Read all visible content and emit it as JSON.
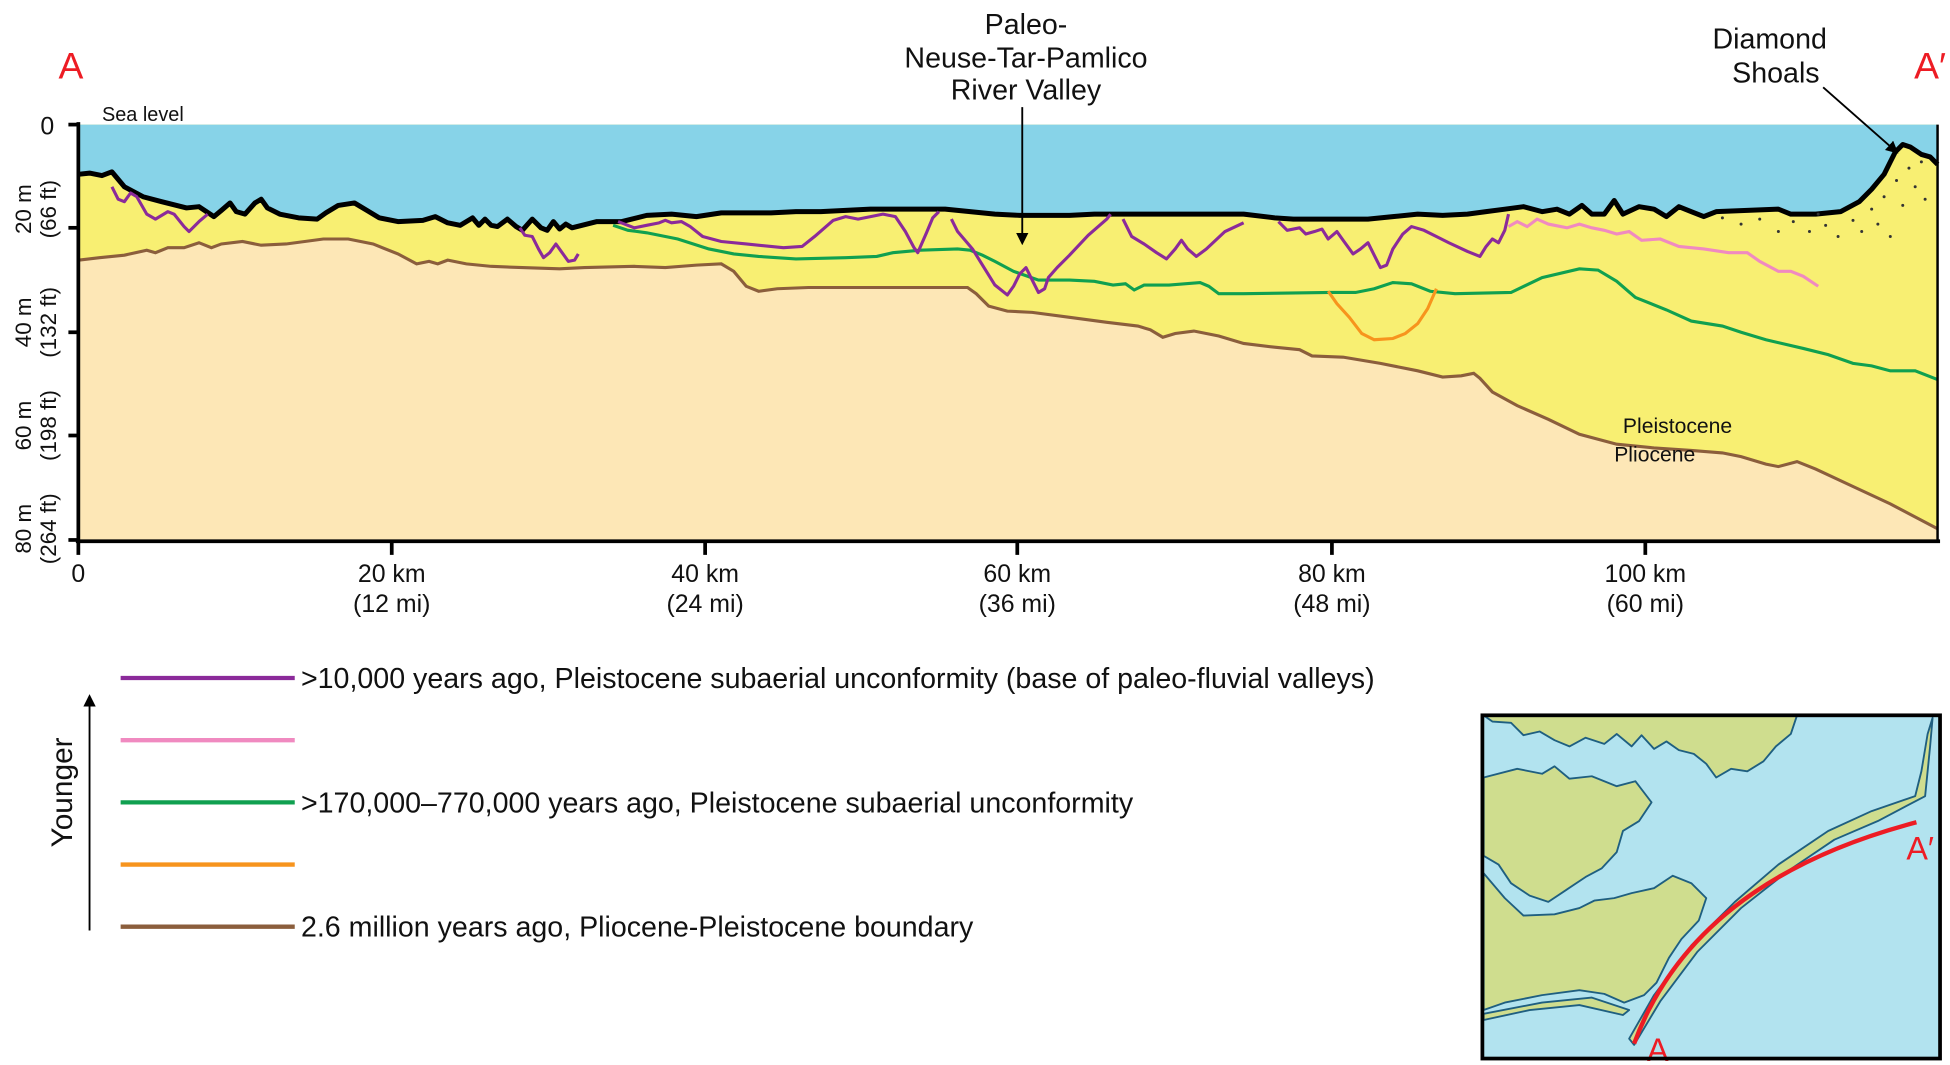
{
  "section": {
    "start_label": "A",
    "end_label": "A′",
    "sea_level_label": "Sea level",
    "valley_label": [
      "Paleo-",
      "Neuse-Tar-Pamlico",
      "River Valley"
    ],
    "shoals_label": [
      "Diamond",
      "Shoals"
    ],
    "upper_unit_label": "Pleistocene",
    "lower_unit_label": "Pliocene"
  },
  "y_axis": {
    "ticks": [
      {
        "m": "0"
      },
      {
        "m": "20 m",
        "ft": "(66 ft)"
      },
      {
        "m": "40 m",
        "ft": "(132 ft)"
      },
      {
        "m": "60 m",
        "ft": "(198 ft)"
      },
      {
        "m": "80 m",
        "ft": "(264 ft)"
      }
    ]
  },
  "x_axis": {
    "ticks": [
      {
        "km": "0"
      },
      {
        "km": "20 km",
        "mi": "(12 mi)"
      },
      {
        "km": "40 km",
        "mi": "(24 mi)"
      },
      {
        "km": "60 km",
        "mi": "(36 mi)"
      },
      {
        "km": "80 km",
        "mi": "(48 mi)"
      },
      {
        "km": "100 km",
        "mi": "(60 mi)"
      }
    ]
  },
  "legend": {
    "arrow_label": "Younger",
    "items": [
      {
        "color": "#8b2a9a",
        "text": ">10,000 years ago, Pleistocene subaerial unconformity (base of paleo-fluvial valleys)"
      },
      {
        "color": "#f08ac0",
        "text": ""
      },
      {
        "color": "#10a050",
        "text": ">170,000–770,000 years ago, Pleistocene subaerial unconformity"
      },
      {
        "color": "#f7941d",
        "text": ""
      },
      {
        "color": "#8b5e3c",
        "text": "2.6 million years ago, Pliocene-Pleistocene boundary"
      }
    ]
  },
  "inset_map": {
    "start_label": "A",
    "end_label": "A′"
  },
  "colors": {
    "water": "#87d3e8",
    "pleistocene": "#f8ef72",
    "pliocene": "#fde7b6",
    "seafloor": "#000000",
    "section_line": "#ed1c24",
    "map_land": "#cfdd8e",
    "map_water": "#b2e3ef",
    "map_shore": "#1f5f80"
  }
}
